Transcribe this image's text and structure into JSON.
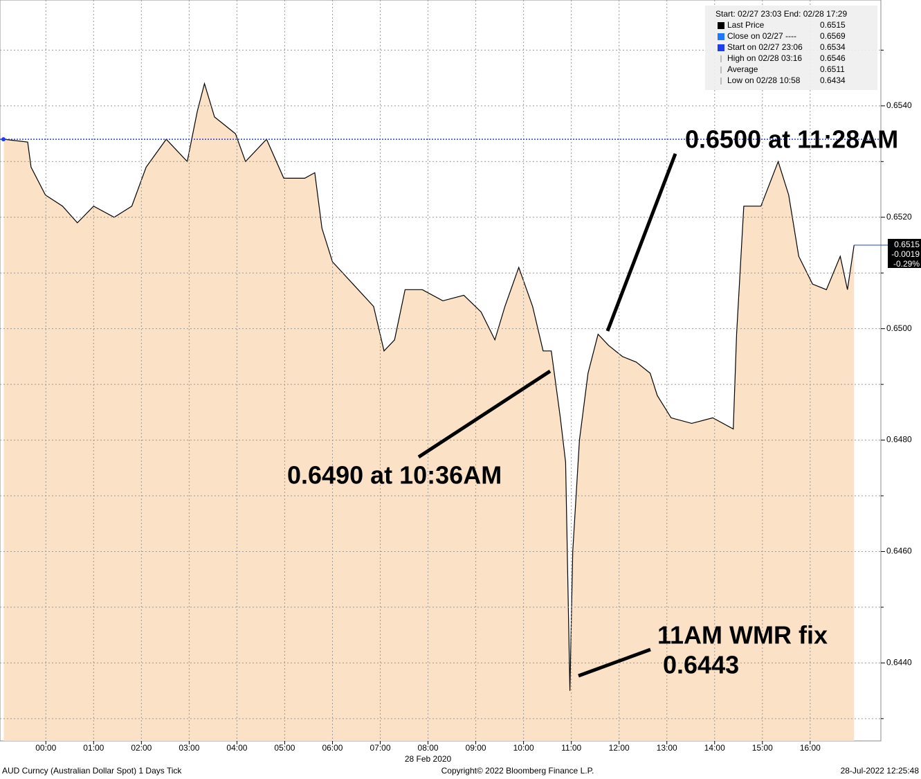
{
  "chart_data": {
    "type": "area",
    "series": [
      {
        "name": "Last Price",
        "color": "#000000",
        "fill": "#fbe1c6",
        "x": [
          -0.88,
          -0.38,
          -0.31,
          -0.01,
          0.35,
          0.66,
          1.0,
          1.43,
          1.8,
          2.1,
          2.52,
          2.96,
          3.17,
          3.32,
          3.53,
          3.97,
          4.18,
          4.62,
          4.98,
          5.42,
          5.63,
          5.78,
          6.0,
          6.43,
          6.86,
          7.08,
          7.3,
          7.52,
          7.88,
          8.31,
          8.75,
          9.11,
          9.4,
          9.61,
          9.9,
          10.19,
          10.41,
          10.58,
          10.77,
          10.88,
          10.97,
          11.03,
          11.17,
          11.35,
          11.56,
          11.78,
          12.07,
          12.36,
          12.65,
          12.8,
          13.09,
          13.52,
          13.96,
          14.39,
          14.46,
          14.61,
          14.97,
          15.33,
          15.55,
          15.76,
          16.05,
          16.34,
          16.63,
          16.78,
          16.92
        ],
        "values": [
          0.6534,
          0.65335,
          0.6529,
          0.6524,
          0.6522,
          0.6519,
          0.6522,
          0.652,
          0.6522,
          0.6529,
          0.6534,
          0.653,
          0.6539,
          0.6544,
          0.6538,
          0.6535,
          0.653,
          0.6534,
          0.6527,
          0.6527,
          0.6528,
          0.6518,
          0.6512,
          0.6508,
          0.6504,
          0.6496,
          0.6498,
          0.6507,
          0.6507,
          0.6505,
          0.6506,
          0.6503,
          0.6498,
          0.6504,
          0.6511,
          0.6504,
          0.6496,
          0.6496,
          0.6484,
          0.6476,
          0.6435,
          0.646,
          0.648,
          0.6492,
          0.6499,
          0.6497,
          0.6495,
          0.6494,
          0.6492,
          0.6488,
          0.6484,
          0.6483,
          0.6484,
          0.6482,
          0.6499,
          0.6522,
          0.6522,
          0.653,
          0.6524,
          0.6513,
          0.6508,
          0.6507,
          0.6513,
          0.6507,
          0.6515
        ]
      }
    ],
    "xlim": [
      -0.96,
      17.48
    ],
    "xticks": [
      {
        "value": 0,
        "label": "00:00"
      },
      {
        "value": 1,
        "label": "01:00"
      },
      {
        "value": 2,
        "label": "02:00"
      },
      {
        "value": 3,
        "label": "03:00"
      },
      {
        "value": 4,
        "label": "04:00"
      },
      {
        "value": 5,
        "label": "05:00"
      },
      {
        "value": 6,
        "label": "06:00"
      },
      {
        "value": 7,
        "label": "07:00"
      },
      {
        "value": 8,
        "label": "08:00"
      },
      {
        "value": 9,
        "label": "09:00"
      },
      {
        "value": 10,
        "label": "10:00"
      },
      {
        "value": 11,
        "label": "11:00"
      },
      {
        "value": 12,
        "label": "12:00"
      },
      {
        "value": 13,
        "label": "13:00"
      },
      {
        "value": 14,
        "label": "14:00"
      },
      {
        "value": 15,
        "label": "15:00"
      },
      {
        "value": 16,
        "label": "16:00"
      }
    ],
    "date_label": "28 Feb 2020",
    "ylim": [
      0.6426,
      0.6559
    ],
    "yticks": [
      {
        "value": 0.654,
        "label": "0.6540"
      },
      {
        "value": 0.652,
        "label": "0.6520"
      },
      {
        "value": 0.65,
        "label": "0.6500"
      },
      {
        "value": 0.648,
        "label": "0.6480"
      },
      {
        "value": 0.646,
        "label": "0.6460"
      },
      {
        "value": 0.644,
        "label": "0.6440"
      }
    ],
    "yminor": [
      0.655,
      0.653,
      0.651,
      0.649,
      0.647,
      0.645,
      0.643
    ],
    "grid": true,
    "legend": {
      "header": "Start: 02/27 23:03 End: 02/28 17:29",
      "items": [
        {
          "label": "Last Price",
          "value": 0.6515,
          "color": "#000000"
        },
        {
          "label": "Close on 02/27 ----",
          "value": 0.6569,
          "color": "#1e78ff"
        },
        {
          "label": "Start on 02/27 23:06",
          "value": 0.6534,
          "color": "#1e3cf0"
        },
        {
          "label": "High on 02/28 03:16",
          "value": 0.6546
        },
        {
          "label": "Average",
          "value": 0.6511
        },
        {
          "label": "Low on 02/28 10:58",
          "value": 0.6434
        }
      ]
    },
    "last_tag": {
      "value": 0.6515,
      "change": -0.0019,
      "pct_change": {
        "value": -0.29,
        "label": "-0.29%"
      }
    },
    "annotations": [
      "0.6500 at 11:28AM",
      "0.6490 at 10:36AM",
      "11AM WMR fix",
      "0.6443"
    ],
    "footer": {
      "left": "AUD Curncy (Australian Dollar Spot) 1 Days  Tick",
      "center": "Copyright© 2022 Bloomberg Finance L.P.",
      "right": "28-Jul-2022 12:25:48"
    }
  }
}
